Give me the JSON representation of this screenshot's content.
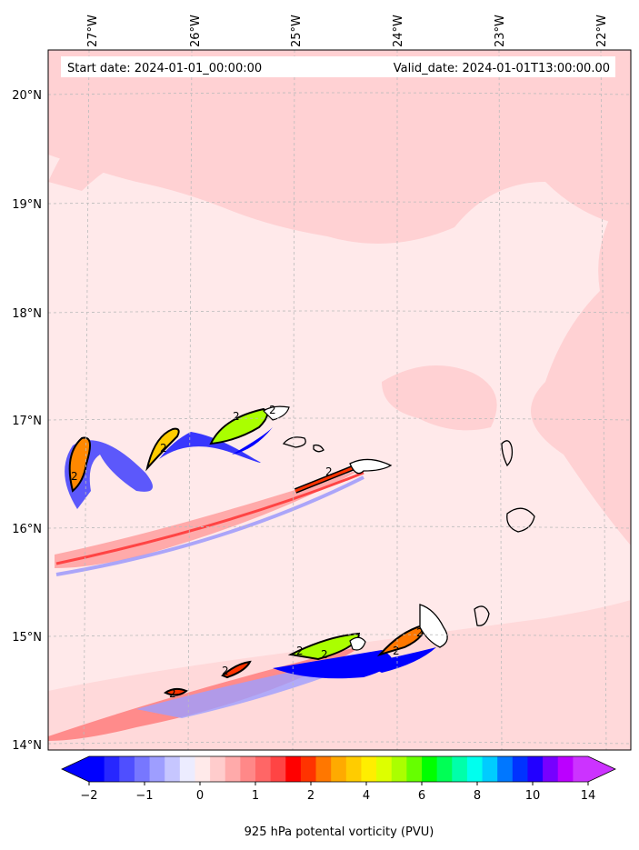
{
  "header": {
    "start_date": "Start date: 2024-01-01_00:00:00",
    "valid_date": "Valid_date: 2024-01-01T13:00:00.00"
  },
  "axes": {
    "lon_labels": [
      "27°W",
      "26°W",
      "25°W",
      "24°W",
      "23°W",
      "22°W"
    ],
    "lat_labels": [
      "20°N",
      "19°N",
      "18°N",
      "17°N",
      "16°N",
      "15°N",
      "14°N"
    ]
  },
  "colorbar": {
    "label": "925 hPa potental vorticity (PVU)",
    "tick_labels": [
      "−2",
      "−1",
      "0",
      "1",
      "2",
      "4",
      "6",
      "8",
      "10",
      "14"
    ],
    "colors": [
      "#0000ff",
      "#2727ff",
      "#4f4fff",
      "#7777ff",
      "#9e9eff",
      "#c6c6ff",
      "#ececff",
      "#ffeaea",
      "#ffcccc",
      "#ffaaaa",
      "#ff8888",
      "#ff6666",
      "#ff4444",
      "#ff0000",
      "#ff3300",
      "#ff7700",
      "#ffaa00",
      "#ffcc00",
      "#ffee00",
      "#ddff00",
      "#aaff00",
      "#66ff00",
      "#00ff00",
      "#00ff55",
      "#00ffaa",
      "#00ffee",
      "#00ccff",
      "#0077ff",
      "#0033ff",
      "#2200ff",
      "#7700ff",
      "#bb00ff",
      "#cc33ff"
    ],
    "over_color": "#cc33ff",
    "under_color": "#0000ff"
  },
  "contour_labels": [
    "2",
    "2",
    "2",
    "2",
    "2",
    "2",
    "2",
    "2",
    "2",
    "2",
    "2"
  ],
  "colors": {
    "background_low": "#ffe9ea",
    "background_high": "#ffd1d3",
    "grid": "#bbbbbb"
  }
}
